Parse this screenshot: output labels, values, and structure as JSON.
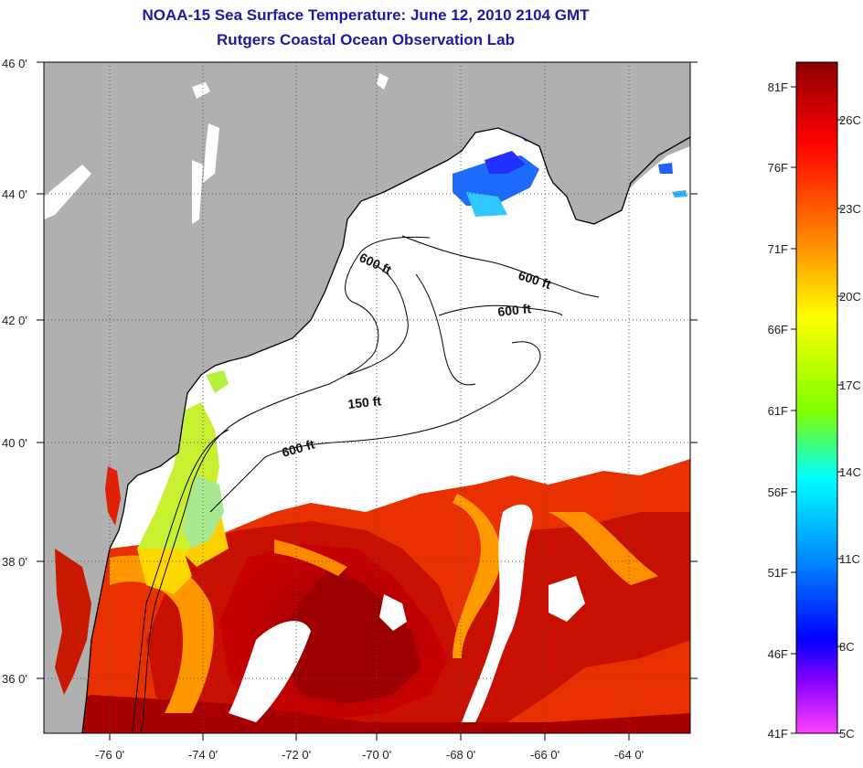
{
  "header": {
    "title": "NOAA-15 Sea Surface Temperature:  June 12, 2010 2104 GMT",
    "subtitle": "Rutgers Coastal Ocean Observation Lab"
  },
  "map": {
    "lat_labels": [
      "46 0'",
      "44 0'",
      "42 0'",
      "40 0'",
      "38 0'",
      "36 0'"
    ],
    "lon_labels": [
      "-76 0'",
      "-74 0'",
      "-72 0'",
      "-70 0'",
      "-68 0'",
      "-66 0'",
      "-64 0'"
    ],
    "depth_labels": [
      "600 ft",
      "600 ft",
      "600 ft",
      "150 ft",
      "600 ft"
    ],
    "land_color": "#b0b0b0",
    "no_data_color": "#ffffff"
  },
  "colorbar": {
    "fahrenheit_labels": [
      "81F",
      "76F",
      "71F",
      "66F",
      "61F",
      "56F",
      "51F",
      "46F",
      "41F"
    ],
    "celsius_labels": [
      "26C",
      "23C",
      "20C",
      "17C",
      "14C",
      "11C",
      "8C",
      "5C"
    ],
    "colors": [
      "#8b0000",
      "#ff0000",
      "#ff8c00",
      "#ffff00",
      "#7fff00",
      "#00ffff",
      "#0080ff",
      "#0000ff",
      "#8000ff",
      "#ff40ff"
    ]
  }
}
